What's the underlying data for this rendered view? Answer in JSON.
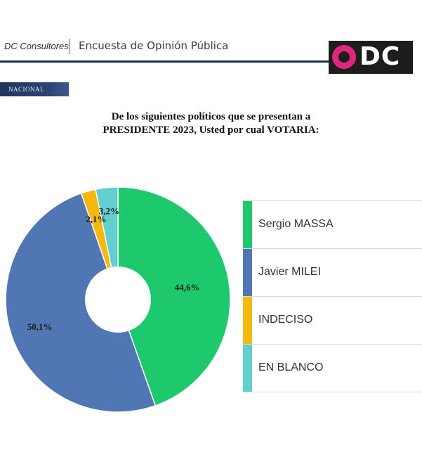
{
  "header": {
    "brand": "DC Consultores",
    "survey_title": "Encuesta de Opinión Pública",
    "logo_text": "DC",
    "logo_colors": {
      "ring": "#e0267d",
      "background": "#1d1d1d"
    }
  },
  "scope_tag": "NACIONAL",
  "question": {
    "line1": "De los siguientes políticos que se presentan a",
    "line2": "PRESIDENTE 2023, Usted por cual VOTARIA:"
  },
  "chart_data": {
    "type": "pie",
    "style": "donut",
    "start": "top, clockwise",
    "categories": [
      "Sergio MASSA",
      "Javier MILEI",
      "INDECISO",
      "EN BLANCO"
    ],
    "values": [
      44.6,
      50.1,
      2.1,
      3.2
    ],
    "value_labels": [
      "44,6%",
      "50,1%",
      "2,1%",
      "3,2%"
    ],
    "colors": [
      "#1ec96e",
      "#5077b4",
      "#f4b90c",
      "#62cfcf"
    ],
    "legend_position": "right"
  }
}
